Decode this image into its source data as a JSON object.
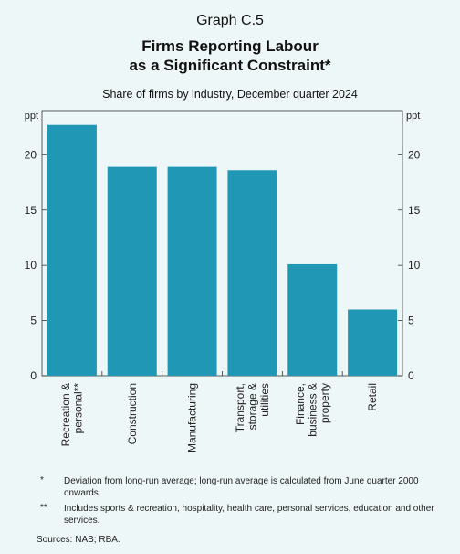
{
  "header": {
    "graph_number": "Graph C.5",
    "title_line1": "Firms Reporting Labour",
    "title_line2": "as a Significant Constraint*",
    "subtitle": "Share of firms by industry, December quarter 2024"
  },
  "chart_data": {
    "type": "bar",
    "title": "Firms Reporting Labour as a Significant Constraint*",
    "subtitle": "Share of firms by industry, December quarter 2024",
    "ylabel": "ppt",
    "ylim": [
      0,
      24
    ],
    "yticks": [
      0,
      5,
      10,
      15,
      20
    ],
    "grid": false,
    "categories": [
      [
        "Recreation &",
        "personal**"
      ],
      [
        "Construction"
      ],
      [
        "Manufacturing"
      ],
      [
        "Transport,",
        "storage &",
        "utilities"
      ],
      [
        "Finance,",
        "business &",
        "property"
      ],
      [
        "Retail"
      ]
    ],
    "values": [
      22.7,
      18.9,
      18.9,
      18.6,
      10.1,
      6.0
    ],
    "bar_color": "#1f97b5",
    "axis_units_left": "ppt",
    "axis_units_right": "ppt"
  },
  "notes": {
    "note1_mark": "*",
    "note1_text": "Deviation from long-run average; long-run average is calculated from June quarter 2000 onwards.",
    "note2_mark": "**",
    "note2_text": "Includes sports & recreation, hospitality, health care, personal services, education and other services.",
    "sources": "Sources: NAB; RBA."
  }
}
